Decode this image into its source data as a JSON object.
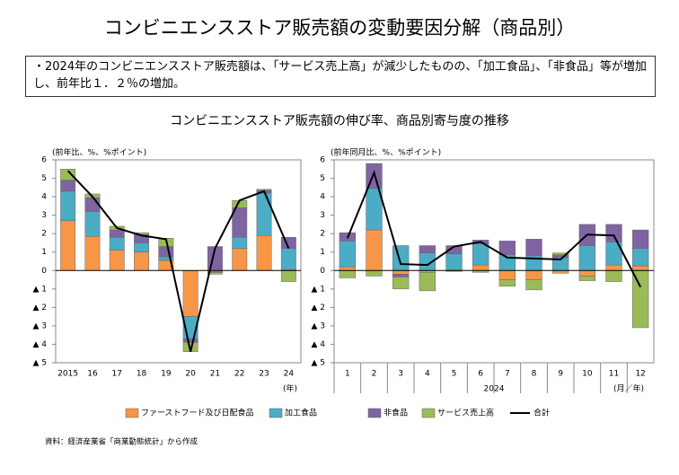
{
  "title": "コンビニエンスストア販売額の変動要因分解（商品別）",
  "note": "2024年のコンビニエンスストア販売額は、「サービス売上高」が減少したものの、「加工食品」、「非食品」等が増加し、前年比１．２％の増加。",
  "subtitle": "コンビニエンスストア販売額の伸び率、商品別寄与度の推移",
  "source": "資料：経済産業省「商業動態統計」から作成",
  "chart_data": [
    {
      "type": "bar",
      "stacked": true,
      "y_label": "(前年比、%、%ポイント)",
      "x_unit": "(年)",
      "categories": [
        "2015",
        "16",
        "17",
        "18",
        "19",
        "20",
        "21",
        "22",
        "23",
        "24"
      ],
      "ylim": [
        -5,
        6
      ],
      "yticks": [
        6,
        5,
        4,
        3,
        2,
        1,
        0,
        {
          "value": -1,
          "label": "▲ 1"
        },
        {
          "value": -2,
          "label": "▲ 2"
        },
        {
          "value": -3,
          "label": "▲ 3"
        },
        {
          "value": -4,
          "label": "▲ 4"
        },
        {
          "value": -5,
          "label": "▲ 5"
        }
      ],
      "series": [
        {
          "name": "ファーストフード及び日配食品",
          "color": "#f79646",
          "values": [
            2.7,
            1.85,
            1.1,
            1.0,
            0.55,
            -2.5,
            -0.05,
            1.2,
            1.9,
            0.05
          ]
        },
        {
          "name": "加工食品",
          "color": "#4bacc6",
          "values": [
            1.6,
            1.35,
            0.7,
            0.5,
            0.2,
            -1.2,
            -0.05,
            0.6,
            2.3,
            1.15
          ]
        },
        {
          "name": "非食品",
          "color": "#8064a2",
          "values": [
            0.6,
            0.75,
            0.4,
            0.45,
            0.55,
            -0.2,
            1.3,
            1.6,
            0.15,
            0.6
          ]
        },
        {
          "name": "サービス売上高",
          "color": "#9bbb59",
          "values": [
            0.6,
            0.2,
            0.2,
            0.1,
            0.45,
            -0.5,
            -0.1,
            0.4,
            0.05,
            -0.6
          ]
        },
        {
          "name": "合計",
          "type": "line",
          "color": "#000000",
          "values": [
            5.4,
            4.0,
            2.3,
            1.9,
            1.7,
            -4.4,
            1.2,
            3.8,
            4.3,
            1.2
          ]
        }
      ]
    },
    {
      "type": "bar",
      "stacked": true,
      "y_label": "(前年同月比、%、%ポイント)",
      "x_unit": "(月／年)",
      "x_group": "2024",
      "categories": [
        "1",
        "2",
        "3",
        "4",
        "5",
        "6",
        "7",
        "8",
        "9",
        "10",
        "11",
        "12"
      ],
      "ylim": [
        -5,
        6
      ],
      "yticks": [
        6,
        5,
        4,
        3,
        2,
        1,
        0,
        {
          "value": -1,
          "label": "▲ 1"
        },
        {
          "value": -2,
          "label": "▲ 2"
        },
        {
          "value": -3,
          "label": "▲ 3"
        },
        {
          "value": -4,
          "label": "▲ 4"
        },
        {
          "value": -5,
          "label": "▲ 5"
        }
      ],
      "series": [
        {
          "color": "#f79646",
          "values": [
            0.2,
            2.2,
            -0.2,
            -0.1,
            0.05,
            0.3,
            -0.5,
            -0.5,
            -0.15,
            -0.3,
            0.3,
            0.25
          ]
        },
        {
          "color": "#4bacc6",
          "values": [
            1.4,
            2.25,
            1.35,
            0.95,
            0.85,
            1.15,
            0.85,
            0.8,
            0.7,
            1.35,
            1.25,
            0.95
          ]
        },
        {
          "color": "#8064a2",
          "values": [
            0.45,
            1.35,
            -0.15,
            0.4,
            0.45,
            0.2,
            0.75,
            0.9,
            0.15,
            1.15,
            0.95,
            1.0
          ]
        },
        {
          "color": "#9bbb59",
          "values": [
            -0.4,
            -0.3,
            -0.65,
            -1.0,
            -0.05,
            -0.1,
            -0.35,
            -0.55,
            0.1,
            -0.25,
            -0.6,
            -3.1
          ]
        },
        {
          "type": "line",
          "color": "#000000",
          "values": [
            1.75,
            5.3,
            0.35,
            0.3,
            1.3,
            1.55,
            0.7,
            0.65,
            0.6,
            1.95,
            1.9,
            -0.9
          ]
        }
      ]
    }
  ]
}
